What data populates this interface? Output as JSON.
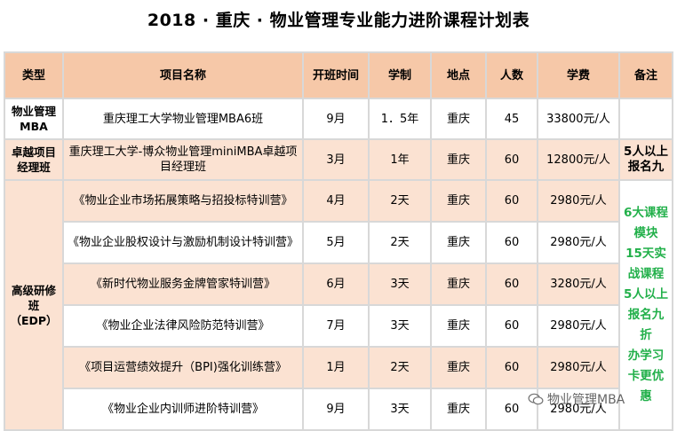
{
  "title": "2018 · 重庆 · 物业管理专业能力进阶课程计划表",
  "headers": [
    "类型",
    "项目名称",
    "开班时间",
    "学制",
    "地点",
    "人数",
    "学费",
    "备注"
  ],
  "rows": [
    {
      "category": "物业管理\nMBA",
      "name": "重庆理工大学物业管理MBA6班",
      "month": "9月",
      "duration": "1．5年",
      "place": "重庆",
      "size": "45",
      "fee": "33800元/人",
      "note": ""
    },
    {
      "category": "卓越项目\n经理班",
      "name": "重庆理工大学-博众物业管理miniMBA卓越项目经理班",
      "month": "3月",
      "duration": "1年",
      "place": "重庆",
      "size": "60",
      "fee": "12800元/人",
      "note": "5人以上\n报名九"
    },
    {
      "category": "高级研修\n班\n（EDP）",
      "name": "《物业企业市场拓展策略与招投标特训营》",
      "month": "4月",
      "duration": "2天",
      "place": "重庆",
      "size": "60",
      "fee": "2980元/人"
    },
    {
      "name": "《物业企业股权设计与激励机制设计特训营》",
      "month": "5月",
      "duration": "2天",
      "place": "重庆",
      "size": "60",
      "fee": "2980元/人"
    },
    {
      "name": "《新时代物业服务金牌管家特训营》",
      "month": "6月",
      "duration": "3天",
      "place": "重庆",
      "size": "60",
      "fee": "3280元/人"
    },
    {
      "name": "《物业企业法律风险防范特训营》",
      "month": "7月",
      "duration": "3天",
      "place": "重庆",
      "size": "60",
      "fee": "2980元/人"
    },
    {
      "name": "《项目运营绩效提升（BPI)强化训练营》",
      "month": "1月",
      "duration": "2天",
      "place": "重庆",
      "size": "60",
      "fee": "2980元/人"
    },
    {
      "name": "《物业企业内训师进阶特训营》",
      "month": "9月",
      "duration": "3天",
      "place": "重庆",
      "size": "60",
      "fee": "2980元/人"
    }
  ],
  "edp_note": "6大课程\n模块\n15天实\n战课程\n5人以上\n报名九\n折\n办学习\n卡更优\n惠",
  "watermark": "物业管理MBA",
  "colors": {
    "header_bg": "#f6c8a8",
    "row_orange": "#fbe2d2",
    "note_green": "#22b04a"
  }
}
